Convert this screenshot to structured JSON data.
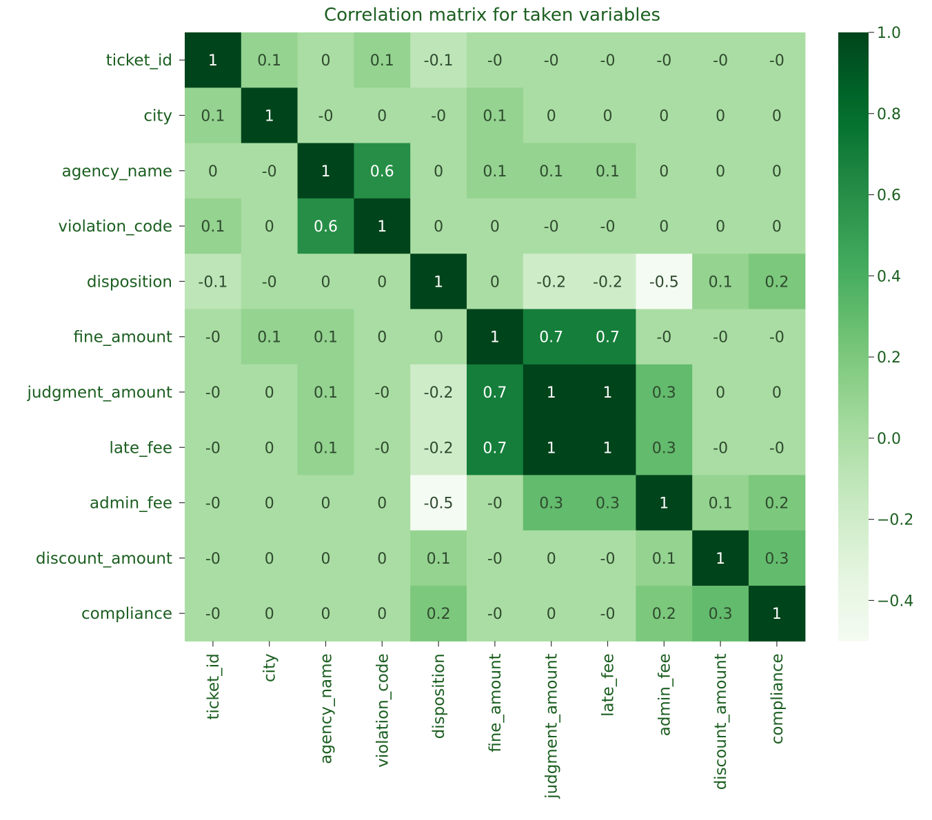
{
  "chart_data": {
    "type": "heatmap",
    "title": "Correlation matrix for taken variables",
    "variables": [
      "ticket_id",
      "city",
      "agency_name",
      "violation_code",
      "disposition",
      "fine_amount",
      "judgment_amount",
      "late_fee",
      "admin_fee",
      "discount_amount",
      "compliance"
    ],
    "values": [
      [
        1,
        0.1,
        0,
        0.1,
        -0.1,
        0,
        0,
        0,
        0,
        0,
        0
      ],
      [
        0.1,
        1,
        0,
        0,
        0,
        0.1,
        0,
        0,
        0,
        0,
        0
      ],
      [
        0,
        0,
        1,
        0.6,
        0,
        0.1,
        0.1,
        0.1,
        0,
        0,
        0
      ],
      [
        0.1,
        0,
        0.6,
        1,
        0,
        0,
        0,
        0,
        0,
        0,
        0
      ],
      [
        -0.1,
        0,
        0,
        0,
        1,
        0,
        -0.2,
        -0.2,
        -0.5,
        0.1,
        0.2
      ],
      [
        0,
        0.1,
        0.1,
        0,
        0,
        1,
        0.7,
        0.7,
        0,
        0,
        0
      ],
      [
        0,
        0,
        0.1,
        0,
        -0.2,
        0.7,
        1,
        1,
        0.3,
        0,
        0
      ],
      [
        0,
        0,
        0.1,
        0,
        -0.2,
        0.7,
        1,
        1,
        0.3,
        0,
        0
      ],
      [
        0,
        0,
        0,
        0,
        -0.5,
        0,
        0.3,
        0.3,
        1,
        0.1,
        0.2
      ],
      [
        0,
        0,
        0,
        0,
        0.1,
        0,
        0,
        0,
        0.1,
        1,
        0.3
      ],
      [
        0,
        0,
        0,
        0,
        0.2,
        0,
        0,
        0,
        0.2,
        0.3,
        1
      ]
    ],
    "colormap": "Greens",
    "color_range": [
      -0.5,
      1.0
    ],
    "colorbar_ticks": [
      "1.0",
      "0.8",
      "0.6",
      "0.4",
      "0.2",
      "0.0",
      "−0.2",
      "−0.4"
    ],
    "colorbar_tick_values": [
      1.0,
      0.8,
      0.6,
      0.4,
      0.2,
      0.0,
      -0.2,
      -0.4
    ],
    "text_color": "#1b5e20",
    "annotation_light_text": "#ffffff",
    "annotation_dark_text": "#2e4a2e"
  }
}
